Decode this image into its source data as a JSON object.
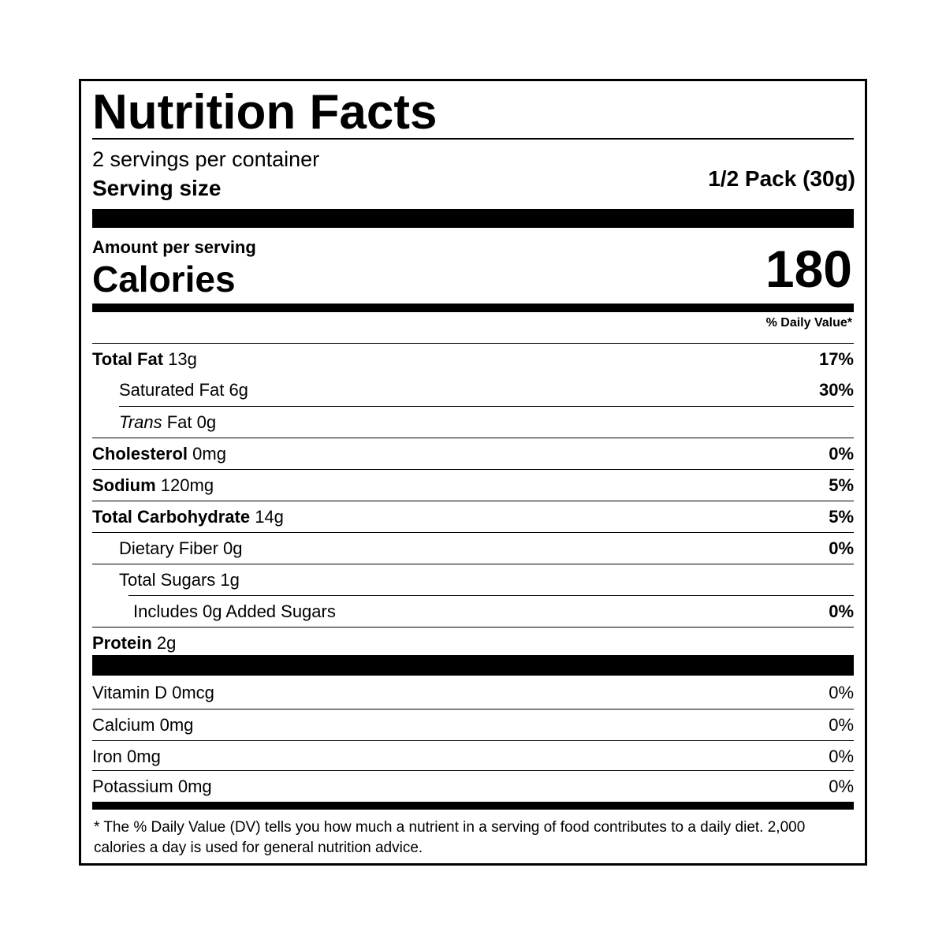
{
  "header": {
    "title": "Nutrition Facts",
    "servings": "2 servings per container",
    "serving_size_label": "Serving size",
    "serving_size": "1/2 Pack (30g)"
  },
  "calories": {
    "amount_label": "Amount per serving",
    "label": "Calories",
    "value": "180"
  },
  "daily_value_header": "% Daily Value*",
  "nutrients": [
    {
      "label": "Total Fat",
      "amount": "13g",
      "dv": "17%"
    },
    {
      "label": "Saturated Fat",
      "amount": "6g",
      "dv": "30%"
    },
    {
      "label_italic": "Trans",
      "label": "Fat",
      "amount": "0g"
    },
    {
      "label": "Cholesterol",
      "amount": "0mg",
      "dv": "0%"
    },
    {
      "label": "Sodium",
      "amount": "120mg",
      "dv": "5%"
    },
    {
      "label": "Total Carbohydrate",
      "amount": "14g",
      "dv": "5%"
    },
    {
      "label": "Dietary Fiber",
      "amount": "0g",
      "dv": "0%"
    },
    {
      "label": "Total Sugars",
      "amount": "1g"
    },
    {
      "label": "Includes 0g Added Sugars",
      "dv": "0%"
    },
    {
      "label": "Protein",
      "amount": "2g"
    }
  ],
  "vitamins": [
    {
      "label": "Vitamin D",
      "amount": "0mcg",
      "dv": "0%"
    },
    {
      "label": "Calcium",
      "amount": "0mg",
      "dv": "0%"
    },
    {
      "label": "Iron",
      "amount": "0mg",
      "dv": "0%"
    },
    {
      "label": "Potassium",
      "amount": "0mg",
      "dv": "0%"
    }
  ],
  "footnote": "* The % Daily Value (DV) tells you how much a nutrient in a serving of food contributes to a daily diet. 2,000 calories a day is used for general nutrition advice."
}
